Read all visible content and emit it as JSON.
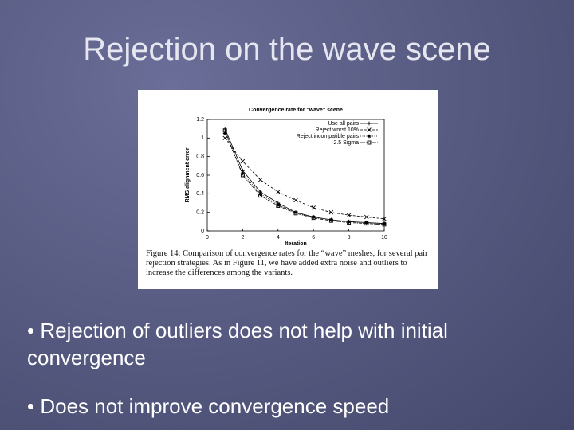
{
  "slide_title": "Rejection on the wave scene",
  "chart_data": {
    "type": "line",
    "title": "Convergence rate for \"wave\" scene",
    "x_label": "Iteration",
    "y_label": "RMS alignment error",
    "x": [
      1,
      2,
      3,
      4,
      5,
      6,
      7,
      8,
      9,
      10
    ],
    "xlim": [
      0,
      10
    ],
    "xticks": [
      0,
      2,
      4,
      6,
      8,
      10
    ],
    "ylim": [
      0,
      1.2
    ],
    "yticks": [
      0,
      0.2,
      0.4,
      0.6,
      0.8,
      1,
      1.2
    ],
    "legend": "upper right",
    "series": [
      {
        "name": "Use all pairs",
        "color": "#000000",
        "values": [
          1.1,
          0.65,
          0.42,
          0.3,
          0.2,
          0.15,
          0.12,
          0.1,
          0.09,
          0.08
        ]
      },
      {
        "name": "Reject worst 10%",
        "color": "#000000",
        "values": [
          1.0,
          0.75,
          0.55,
          0.42,
          0.33,
          0.25,
          0.2,
          0.17,
          0.15,
          0.13
        ]
      },
      {
        "name": "Reject incompatible pairs",
        "color": "#000000",
        "values": [
          1.05,
          0.62,
          0.4,
          0.28,
          0.2,
          0.15,
          0.12,
          0.1,
          0.09,
          0.08
        ]
      },
      {
        "name": "2.5 Sigma",
        "color": "#000000",
        "values": [
          1.08,
          0.6,
          0.38,
          0.27,
          0.19,
          0.14,
          0.11,
          0.09,
          0.08,
          0.07
        ]
      }
    ]
  },
  "caption": "Figure 14: Comparison of convergence rates for the “wave” meshes, for several pair rejection strategies. As in Figure 11, we have added extra noise and outliers to increase the differences among the variants.",
  "bullets": [
    "• Rejection of outliers does not help with initial convergence",
    "• Does not improve convergence speed"
  ]
}
